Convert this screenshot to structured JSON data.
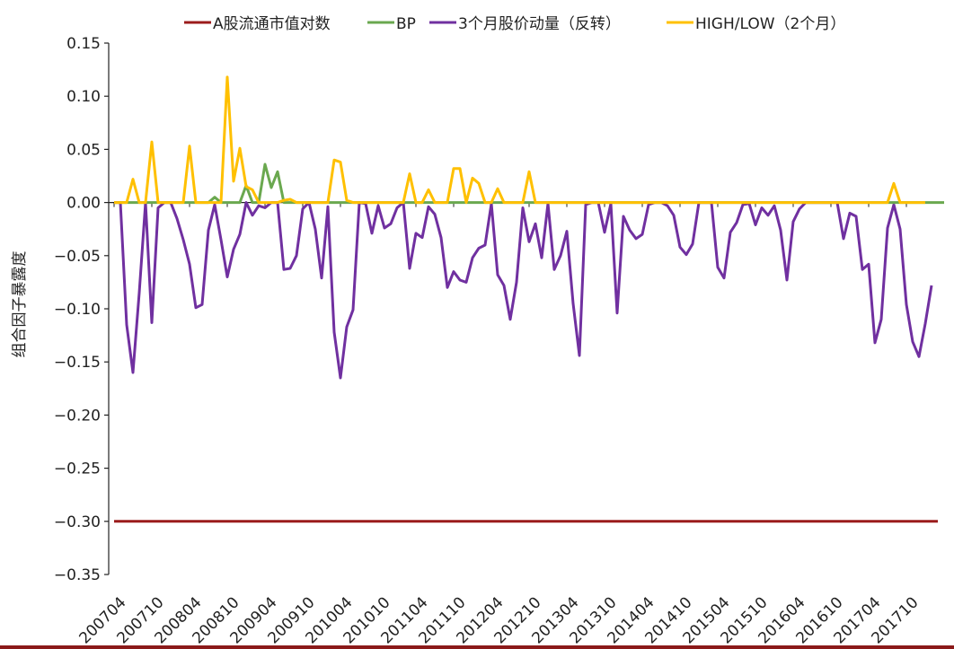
{
  "chart_data": {
    "type": "line",
    "ylabel": "组合因子暴露度",
    "xlabel": "",
    "ylim": [
      -0.35,
      0.15
    ],
    "ystep": 0.05,
    "yticks": [
      "0.15",
      "0.10",
      "0.05",
      "0.00",
      "-0.05",
      "-0.10",
      "-0.15",
      "-0.20",
      "-0.25",
      "-0.30",
      "-0.35"
    ],
    "x_tick_labels": [
      "200704",
      "200710",
      "200804",
      "200810",
      "200904",
      "200910",
      "201004",
      "201010",
      "201104",
      "201110",
      "201204",
      "201210",
      "201304",
      "201310",
      "201404",
      "201410",
      "201504",
      "201510",
      "201604",
      "201610",
      "201704",
      "201710"
    ],
    "x_tick_every": 6,
    "legend_position": "top",
    "grid": false,
    "colors": {
      "market_cap": "#9b1c1c",
      "bp": "#6aa84f",
      "momentum": "#7030a0",
      "highlow": "#ffc000"
    },
    "series": [
      {
        "name": "A股流通市值对数",
        "key": "market_cap",
        "values": [
          -0.3,
          -0.3,
          -0.3,
          -0.3,
          -0.3,
          -0.3,
          -0.3,
          -0.3,
          -0.3,
          -0.3,
          -0.3,
          -0.3,
          -0.3,
          -0.3,
          -0.3,
          -0.3,
          -0.3,
          -0.3,
          -0.3,
          -0.3,
          -0.3,
          -0.3,
          -0.3,
          -0.3,
          -0.3,
          -0.3,
          -0.3,
          -0.3,
          -0.3,
          -0.3,
          -0.3,
          -0.3,
          -0.3,
          -0.3,
          -0.3,
          -0.3,
          -0.3,
          -0.3,
          -0.3,
          -0.3,
          -0.3,
          -0.3,
          -0.3,
          -0.3,
          -0.3,
          -0.3,
          -0.3,
          -0.3,
          -0.3,
          -0.3,
          -0.3,
          -0.3,
          -0.3,
          -0.3,
          -0.3,
          -0.3,
          -0.3,
          -0.3,
          -0.3,
          -0.3,
          -0.3,
          -0.3,
          -0.3,
          -0.3,
          -0.3,
          -0.3,
          -0.3,
          -0.3,
          -0.3,
          -0.3,
          -0.3,
          -0.3,
          -0.3,
          -0.3,
          -0.3,
          -0.3,
          -0.3,
          -0.3,
          -0.3,
          -0.3,
          -0.3,
          -0.3,
          -0.3,
          -0.3,
          -0.3,
          -0.3,
          -0.3,
          -0.3,
          -0.3,
          -0.3,
          -0.3,
          -0.3,
          -0.3,
          -0.3,
          -0.3,
          -0.3,
          -0.3,
          -0.3,
          -0.3,
          -0.3,
          -0.3,
          -0.3,
          -0.3,
          -0.3,
          -0.3,
          -0.3,
          -0.3,
          -0.3,
          -0.3,
          -0.3,
          -0.3,
          -0.3,
          -0.3,
          -0.3,
          -0.3,
          -0.3,
          -0.3,
          -0.3,
          -0.3,
          -0.3,
          -0.3,
          -0.3,
          -0.3,
          -0.3,
          -0.3,
          -0.3,
          -0.3,
          -0.3,
          -0.3,
          -0.3,
          -0.3,
          -0.3
        ]
      },
      {
        "name": "BP",
        "key": "bp",
        "values": [
          0,
          0,
          0,
          0,
          0,
          0,
          0,
          0,
          0,
          0,
          0,
          0,
          0,
          0,
          0,
          0,
          0.005,
          0,
          0,
          0,
          0,
          0.016,
          0,
          0,
          0.036,
          0.014,
          0.029,
          0,
          0,
          0,
          0,
          0,
          0,
          0,
          0,
          0,
          0,
          0,
          0,
          0,
          0,
          0,
          0,
          0,
          0,
          0,
          0,
          0,
          0,
          0,
          0,
          0,
          0,
          0,
          0,
          0,
          0,
          0,
          0,
          0,
          0,
          0,
          0,
          0,
          0,
          0,
          0,
          0,
          0,
          0,
          0,
          0,
          0,
          0,
          0,
          0,
          0,
          0,
          0,
          0,
          0,
          0,
          0,
          0,
          0,
          0,
          0,
          0,
          0,
          0,
          0,
          0,
          0,
          0,
          0,
          0,
          0,
          0,
          0,
          0,
          0,
          0,
          0,
          0,
          0,
          0,
          0,
          0,
          0,
          0,
          0,
          0,
          0,
          0,
          0,
          0,
          0,
          0,
          0,
          0,
          0,
          0,
          0,
          0,
          0,
          0,
          0,
          0,
          0,
          0,
          0,
          0,
          0
        ]
      },
      {
        "name": "3个月股价动量（反转）",
        "key": "momentum",
        "values": [
          0,
          0,
          -0.115,
          -0.16,
          -0.085,
          0,
          -0.113,
          -0.005,
          0,
          0,
          -0.015,
          -0.035,
          -0.058,
          -0.099,
          -0.096,
          -0.026,
          -0.002,
          -0.035,
          -0.07,
          -0.044,
          -0.03,
          0,
          -0.012,
          -0.003,
          -0.005,
          0,
          0,
          -0.063,
          -0.062,
          -0.05,
          -0.006,
          0,
          -0.025,
          -0.071,
          -0.004,
          -0.122,
          -0.165,
          -0.117,
          -0.101,
          0,
          -0.001,
          -0.029,
          -0.003,
          -0.024,
          -0.02,
          -0.005,
          0,
          -0.062,
          -0.029,
          -0.033,
          -0.004,
          -0.011,
          -0.033,
          -0.08,
          -0.065,
          -0.073,
          -0.075,
          -0.052,
          -0.043,
          -0.04,
          -0.001,
          -0.068,
          -0.078,
          -0.11,
          -0.075,
          -0.005,
          -0.037,
          -0.02,
          -0.052,
          -0.001,
          -0.063,
          -0.05,
          -0.027,
          -0.095,
          -0.144,
          -0.002,
          0,
          0,
          -0.028,
          -0.001,
          -0.104,
          -0.013,
          -0.026,
          -0.034,
          -0.03,
          -0.002,
          0,
          0,
          -0.003,
          -0.012,
          -0.042,
          -0.049,
          -0.039,
          0,
          0,
          0,
          -0.061,
          -0.071,
          -0.028,
          -0.019,
          -0.002,
          -0.001,
          -0.021,
          -0.005,
          -0.012,
          -0.003,
          -0.026,
          -0.073,
          -0.018,
          -0.006,
          0,
          0,
          0,
          0,
          0,
          0,
          -0.034,
          -0.01,
          -0.013,
          -0.063,
          -0.058,
          -0.132,
          -0.11,
          -0.024,
          -0.002,
          -0.025,
          -0.096,
          -0.131,
          -0.145,
          -0.114,
          -0.078
        ]
      },
      {
        "name": "HIGH/LOW（2个月）",
        "key": "highlow",
        "values": [
          0,
          0,
          0,
          0.022,
          0,
          0,
          0.057,
          0,
          0,
          0,
          0,
          0,
          0.053,
          0,
          0,
          0,
          0,
          0,
          0.118,
          0.02,
          0.051,
          0.015,
          0.012,
          0,
          0,
          0,
          0,
          0.002,
          0.003,
          0,
          0,
          0,
          0,
          0,
          0,
          0.04,
          0.038,
          0.002,
          0,
          0,
          0,
          0,
          0,
          0,
          0,
          0,
          0,
          0.027,
          0,
          0,
          0.012,
          0,
          0,
          0,
          0.032,
          0.032,
          0,
          0.023,
          0.018,
          0,
          0,
          0.013,
          0,
          0,
          0,
          0,
          0.029,
          0,
          0,
          0,
          0,
          0,
          0,
          0,
          0,
          0,
          0,
          0,
          0,
          0,
          0,
          0,
          0,
          0,
          0,
          0,
          0,
          0,
          0,
          0,
          0,
          0,
          0,
          0,
          0,
          0,
          0,
          0,
          0,
          0,
          0,
          0,
          0,
          0,
          0,
          0,
          0,
          0,
          0,
          0,
          0,
          0,
          0,
          0,
          0,
          0,
          0,
          0,
          0,
          0,
          0,
          0,
          0,
          0,
          0.018,
          0,
          0,
          0,
          0,
          0
        ]
      }
    ]
  }
}
